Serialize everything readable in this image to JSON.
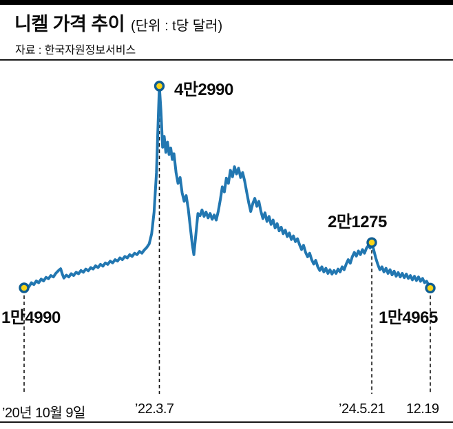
{
  "header": {
    "title": "니켈 가격 추이",
    "unit": "(단위 : t당 달러)",
    "source": "자료 : 한국자원정보서비스"
  },
  "chart_data": {
    "type": "line",
    "title": "니켈 가격 추이",
    "unit_label": "t당 달러",
    "series_name": "니켈 가격",
    "ylim": [
      14000,
      44000
    ],
    "grid": false,
    "legend": "none",
    "colors": {
      "line": "#2277b1",
      "marker_fill": "#fad417",
      "marker_stroke": "#0f5e93",
      "dash": "#111111"
    },
    "annotations": [
      {
        "label": "1만4990",
        "value": 14990,
        "x": 0.0,
        "date": "’20년 10월 9일"
      },
      {
        "label": "4만2990",
        "value": 42990,
        "x": 0.333,
        "date": "’22.3.7"
      },
      {
        "label": "2만1275",
        "value": 21275,
        "x": 0.856,
        "date": "’24.5.21"
      },
      {
        "label": "1만4965",
        "value": 14965,
        "x": 1.0,
        "date": "12.19"
      }
    ],
    "x_axis_labels": [
      "’20년 10월 9일",
      "’22.3.7",
      "’24.5.21",
      "12.19"
    ],
    "points": [
      [
        0.0,
        14990
      ],
      [
        0.006,
        15350
      ],
      [
        0.012,
        15150
      ],
      [
        0.018,
        15700
      ],
      [
        0.024,
        15450
      ],
      [
        0.03,
        15950
      ],
      [
        0.036,
        15700
      ],
      [
        0.042,
        16200
      ],
      [
        0.048,
        15950
      ],
      [
        0.054,
        16450
      ],
      [
        0.06,
        16250
      ],
      [
        0.066,
        16700
      ],
      [
        0.072,
        16500
      ],
      [
        0.078,
        17000
      ],
      [
        0.084,
        17350
      ],
      [
        0.09,
        17650
      ],
      [
        0.094,
        16900
      ],
      [
        0.098,
        16350
      ],
      [
        0.104,
        16750
      ],
      [
        0.11,
        16500
      ],
      [
        0.116,
        16950
      ],
      [
        0.122,
        16700
      ],
      [
        0.128,
        17150
      ],
      [
        0.134,
        16950
      ],
      [
        0.14,
        17400
      ],
      [
        0.146,
        17150
      ],
      [
        0.152,
        17600
      ],
      [
        0.158,
        17350
      ],
      [
        0.164,
        17800
      ],
      [
        0.17,
        17600
      ],
      [
        0.176,
        18050
      ],
      [
        0.182,
        17800
      ],
      [
        0.188,
        18250
      ],
      [
        0.194,
        18000
      ],
      [
        0.2,
        18450
      ],
      [
        0.206,
        18250
      ],
      [
        0.212,
        18700
      ],
      [
        0.218,
        18450
      ],
      [
        0.224,
        18900
      ],
      [
        0.23,
        18700
      ],
      [
        0.236,
        19150
      ],
      [
        0.242,
        18900
      ],
      [
        0.248,
        19350
      ],
      [
        0.254,
        19150
      ],
      [
        0.26,
        19600
      ],
      [
        0.266,
        19350
      ],
      [
        0.272,
        19800
      ],
      [
        0.278,
        19600
      ],
      [
        0.284,
        20050
      ],
      [
        0.29,
        19800
      ],
      [
        0.296,
        20250
      ],
      [
        0.302,
        20600
      ],
      [
        0.308,
        21100
      ],
      [
        0.314,
        22500
      ],
      [
        0.32,
        25500
      ],
      [
        0.326,
        31000
      ],
      [
        0.33,
        38000
      ],
      [
        0.333,
        42990
      ],
      [
        0.337,
        39500
      ],
      [
        0.341,
        34500
      ],
      [
        0.345,
        36000
      ],
      [
        0.349,
        33800
      ],
      [
        0.353,
        35200
      ],
      [
        0.357,
        33500
      ],
      [
        0.361,
        34400
      ],
      [
        0.365,
        32800
      ],
      [
        0.369,
        33600
      ],
      [
        0.374,
        31000
      ],
      [
        0.379,
        29500
      ],
      [
        0.384,
        30300
      ],
      [
        0.389,
        28200
      ],
      [
        0.394,
        27000
      ],
      [
        0.399,
        27800
      ],
      [
        0.404,
        26000
      ],
      [
        0.409,
        23500
      ],
      [
        0.414,
        21000
      ],
      [
        0.418,
        19600
      ],
      [
        0.423,
        22500
      ],
      [
        0.428,
        25300
      ],
      [
        0.433,
        25000
      ],
      [
        0.438,
        25800
      ],
      [
        0.443,
        24900
      ],
      [
        0.448,
        25500
      ],
      [
        0.453,
        24700
      ],
      [
        0.458,
        25300
      ],
      [
        0.463,
        24500
      ],
      [
        0.468,
        25100
      ],
      [
        0.473,
        24400
      ],
      [
        0.478,
        25600
      ],
      [
        0.483,
        27200
      ],
      [
        0.488,
        29000
      ],
      [
        0.493,
        28300
      ],
      [
        0.498,
        30200
      ],
      [
        0.503,
        29500
      ],
      [
        0.508,
        31300
      ],
      [
        0.513,
        30400
      ],
      [
        0.518,
        31800
      ],
      [
        0.523,
        30800
      ],
      [
        0.528,
        31600
      ],
      [
        0.533,
        30300
      ],
      [
        0.538,
        31000
      ],
      [
        0.543,
        29800
      ],
      [
        0.548,
        28300
      ],
      [
        0.553,
        26800
      ],
      [
        0.558,
        25600
      ],
      [
        0.563,
        26700
      ],
      [
        0.568,
        27400
      ],
      [
        0.573,
        26300
      ],
      [
        0.578,
        27000
      ],
      [
        0.583,
        25600
      ],
      [
        0.588,
        24600
      ],
      [
        0.593,
        25400
      ],
      [
        0.598,
        24200
      ],
      [
        0.603,
        24900
      ],
      [
        0.608,
        23800
      ],
      [
        0.613,
        24400
      ],
      [
        0.618,
        23300
      ],
      [
        0.623,
        23900
      ],
      [
        0.628,
        22900
      ],
      [
        0.633,
        23400
      ],
      [
        0.638,
        22500
      ],
      [
        0.643,
        23000
      ],
      [
        0.648,
        22100
      ],
      [
        0.653,
        22600
      ],
      [
        0.658,
        21700
      ],
      [
        0.663,
        22200
      ],
      [
        0.668,
        21400
      ],
      [
        0.673,
        21800
      ],
      [
        0.678,
        21000
      ],
      [
        0.683,
        20300
      ],
      [
        0.688,
        20900
      ],
      [
        0.693,
        19900
      ],
      [
        0.698,
        19300
      ],
      [
        0.703,
        19800
      ],
      [
        0.708,
        18900
      ],
      [
        0.713,
        18300
      ],
      [
        0.718,
        18800
      ],
      [
        0.723,
        17900
      ],
      [
        0.728,
        17400
      ],
      [
        0.733,
        17900
      ],
      [
        0.738,
        17200
      ],
      [
        0.743,
        17700
      ],
      [
        0.748,
        17000
      ],
      [
        0.753,
        17500
      ],
      [
        0.758,
        16900
      ],
      [
        0.763,
        17400
      ],
      [
        0.768,
        17000
      ],
      [
        0.773,
        17600
      ],
      [
        0.778,
        17200
      ],
      [
        0.783,
        17900
      ],
      [
        0.788,
        17500
      ],
      [
        0.793,
        18300
      ],
      [
        0.798,
        18900
      ],
      [
        0.803,
        18400
      ],
      [
        0.808,
        19300
      ],
      [
        0.813,
        19900
      ],
      [
        0.818,
        19400
      ],
      [
        0.823,
        20100
      ],
      [
        0.828,
        19600
      ],
      [
        0.833,
        20300
      ],
      [
        0.838,
        19800
      ],
      [
        0.843,
        20500
      ],
      [
        0.848,
        20900
      ],
      [
        0.852,
        20500
      ],
      [
        0.856,
        21275
      ],
      [
        0.861,
        20200
      ],
      [
        0.866,
        19100
      ],
      [
        0.871,
        18200
      ],
      [
        0.876,
        17500
      ],
      [
        0.881,
        17900
      ],
      [
        0.886,
        17200
      ],
      [
        0.891,
        17700
      ],
      [
        0.896,
        17000
      ],
      [
        0.901,
        17500
      ],
      [
        0.906,
        16800
      ],
      [
        0.911,
        17300
      ],
      [
        0.916,
        16600
      ],
      [
        0.921,
        17100
      ],
      [
        0.926,
        16500
      ],
      [
        0.931,
        17000
      ],
      [
        0.936,
        16400
      ],
      [
        0.941,
        16900
      ],
      [
        0.946,
        16300
      ],
      [
        0.951,
        16700
      ],
      [
        0.956,
        16100
      ],
      [
        0.961,
        16600
      ],
      [
        0.966,
        16000
      ],
      [
        0.971,
        16500
      ],
      [
        0.976,
        15900
      ],
      [
        0.981,
        16300
      ],
      [
        0.986,
        15700
      ],
      [
        0.991,
        15900
      ],
      [
        0.996,
        15400
      ],
      [
        1.0,
        14965
      ]
    ]
  }
}
